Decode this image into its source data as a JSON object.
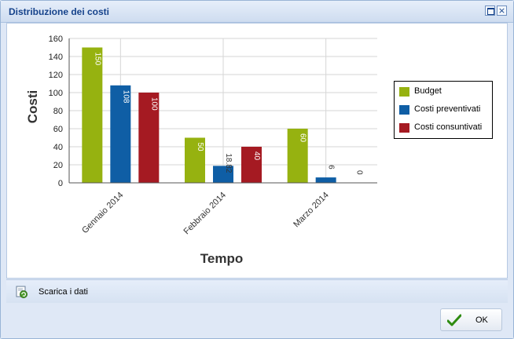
{
  "window": {
    "title": "Distribuzione dei costi",
    "maximize_icon": "maximize-icon",
    "close_icon": "close-icon"
  },
  "chart_data": {
    "type": "bar",
    "categories": [
      "Gennaio 2014",
      "Febbraio 2014",
      "Marzo 2014"
    ],
    "series": [
      {
        "name": "Budget",
        "values": [
          150,
          50,
          60
        ],
        "labels": [
          "150",
          "50",
          "60"
        ],
        "color": "#96b210"
      },
      {
        "name": "Costi preventivati",
        "values": [
          108,
          18.82,
          6
        ],
        "labels": [
          "108",
          "18.82",
          "6"
        ],
        "color": "#0f5ea5"
      },
      {
        "name": "Costi consuntivati",
        "values": [
          100,
          40,
          0
        ],
        "labels": [
          "100",
          "40",
          "0"
        ],
        "color": "#a51a22"
      }
    ],
    "xlabel": "Tempo",
    "ylabel": "Costi",
    "ylim": [
      0,
      160
    ],
    "yticks": [
      0,
      20,
      40,
      60,
      80,
      100,
      120,
      140,
      160
    ],
    "grid": true,
    "legend": "right"
  },
  "toolbar": {
    "download_label": "Scarica i dati",
    "download_icon": "download-refresh-icon"
  },
  "footer": {
    "ok_label": "OK",
    "ok_icon": "checkmark-icon",
    "ok_color": "#2e8b10"
  }
}
